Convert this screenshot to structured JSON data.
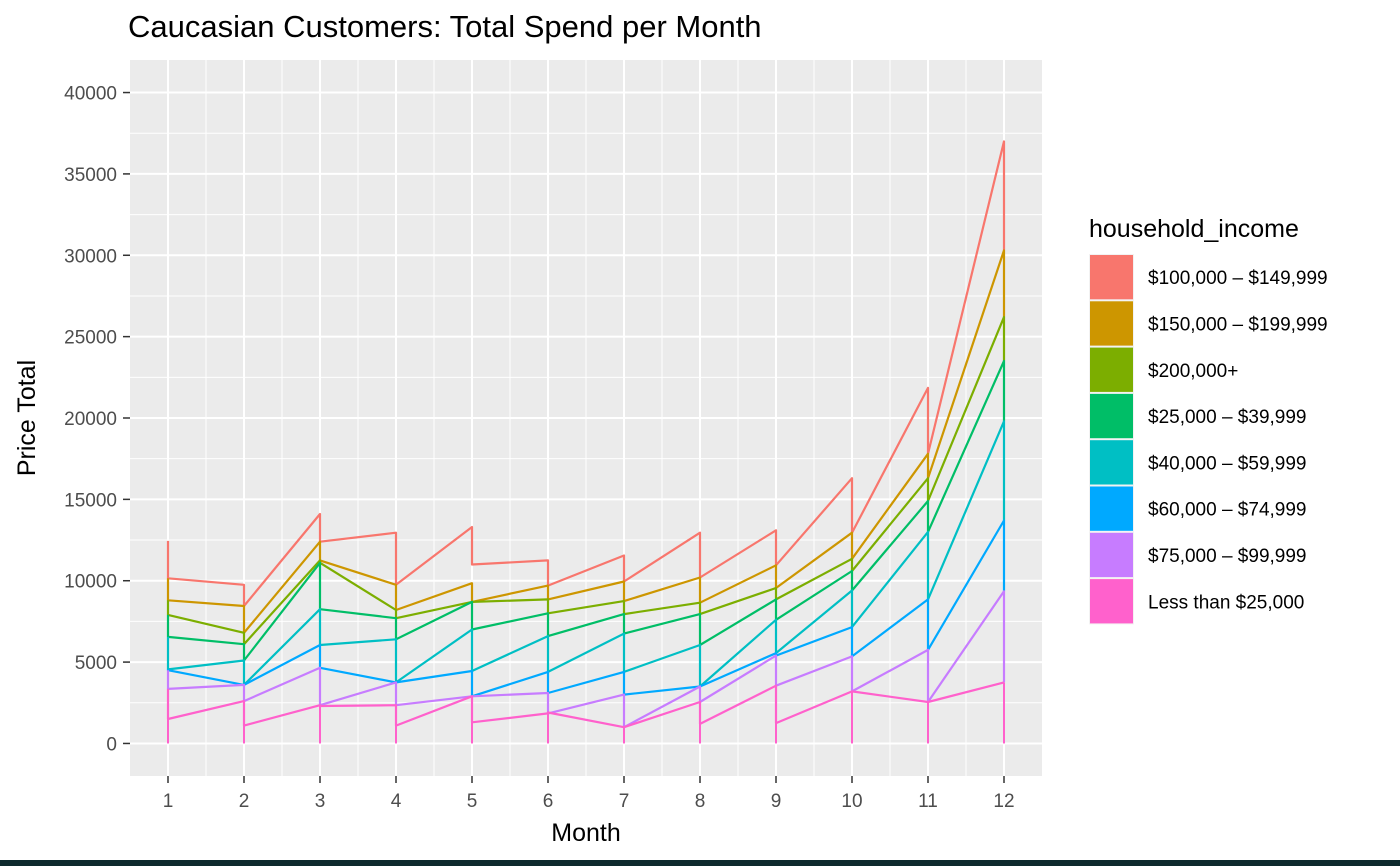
{
  "chart_data": {
    "type": "line",
    "title": "Caucasian Customers: Total Spend per Month",
    "xlabel": "Month",
    "ylabel": "Price Total",
    "x_ticks": [
      "1",
      "2",
      "3",
      "4",
      "5",
      "6",
      "7",
      "8",
      "9",
      "10",
      "11",
      "12"
    ],
    "y_ticks": [
      "0",
      "5000",
      "10000",
      "15000",
      "20000",
      "25000",
      "30000",
      "35000",
      "40000"
    ],
    "xlim": [
      0.5,
      12.5
    ],
    "ylim": [
      -2000,
      42000
    ],
    "grid": true,
    "legend": {
      "title": "household_income",
      "placement": "right"
    },
    "series": [
      {
        "name": "$100,000 – $149,999",
        "color": "#F8766D",
        "values": [
          [
            12450,
            10150
          ],
          [
            9750,
            8450
          ],
          [
            14100,
            12400
          ],
          [
            12950,
            9750
          ],
          [
            13300,
            11000
          ],
          [
            11250,
            9700
          ],
          [
            11550,
            9950
          ],
          [
            12950,
            10200
          ],
          [
            13100,
            10950
          ],
          [
            16300,
            12950
          ],
          [
            21850,
            17800
          ],
          [
            37000,
            30300
          ]
        ]
      },
      {
        "name": "$150,000 – $199,999",
        "color": "#CD9600",
        "values": [
          [
            10150,
            8800
          ],
          [
            8450,
            6800
          ],
          [
            12400,
            11250
          ],
          [
            9750,
            8200
          ],
          [
            9850,
            8700
          ],
          [
            9700,
            8850
          ],
          [
            9950,
            8750
          ],
          [
            10200,
            8650
          ],
          [
            10950,
            9550
          ],
          [
            12950,
            11350
          ],
          [
            17800,
            16300
          ],
          [
            30300,
            26200
          ]
        ]
      },
      {
        "name": "$200,000+",
        "color": "#7CAE00",
        "values": [
          [
            8800,
            7900
          ],
          [
            6800,
            6100
          ],
          [
            11250,
            11100
          ],
          [
            8200,
            7700
          ],
          [
            8700,
            8700
          ],
          [
            8850,
            8000
          ],
          [
            8750,
            7950
          ],
          [
            8650,
            7950
          ],
          [
            9550,
            8850
          ],
          [
            11350,
            10600
          ],
          [
            16300,
            14900
          ],
          [
            26200,
            23500
          ]
        ]
      },
      {
        "name": "$25,000 – $39,999",
        "color": "#00BE67",
        "values": [
          [
            7900,
            6550
          ],
          [
            6100,
            5100
          ],
          [
            11100,
            8250
          ],
          [
            7700,
            6400
          ],
          [
            8700,
            7000
          ],
          [
            8000,
            6600
          ],
          [
            7950,
            6750
          ],
          [
            7950,
            6050
          ],
          [
            8850,
            7600
          ],
          [
            10600,
            9400
          ],
          [
            14900,
            13000
          ],
          [
            23500,
            19800
          ]
        ]
      },
      {
        "name": "$40,000 – $59,999",
        "color": "#00BFC4",
        "values": [
          [
            6550,
            4550
          ],
          [
            5100,
            3600
          ],
          [
            8250,
            6050
          ],
          [
            6400,
            3750
          ],
          [
            7000,
            4450
          ],
          [
            6600,
            4400
          ],
          [
            6750,
            4400
          ],
          [
            6050,
            3500
          ],
          [
            7600,
            5550
          ],
          [
            9400,
            7150
          ],
          [
            13000,
            8850
          ],
          [
            19800,
            13700
          ]
        ]
      },
      {
        "name": "$60,000 – $74,999",
        "color": "#00A9FF",
        "values": [
          [
            4550,
            4500
          ],
          [
            3600,
            3600
          ],
          [
            6050,
            4650
          ],
          [
            3750,
            3750
          ],
          [
            4450,
            2900
          ],
          [
            4400,
            3100
          ],
          [
            4400,
            3000
          ],
          [
            3500,
            3500
          ],
          [
            5550,
            5400
          ],
          [
            7150,
            5350
          ],
          [
            8850,
            5750
          ],
          [
            13700,
            9350
          ]
        ]
      },
      {
        "name": "$75,000 – $99,999",
        "color": "#C77CFF",
        "values": [
          [
            4500,
            3350
          ],
          [
            3600,
            2600
          ],
          [
            4650,
            2350
          ],
          [
            3750,
            2350
          ],
          [
            2900,
            2900
          ],
          [
            3100,
            1850
          ],
          [
            3000,
            1000
          ],
          [
            3500,
            2550
          ],
          [
            5400,
            3550
          ],
          [
            5350,
            3200
          ],
          [
            5750,
            2550
          ],
          [
            9350,
            3750
          ]
        ]
      },
      {
        "name": "Less than $25,000",
        "color": "#FF61CC",
        "values": [
          [
            3350,
            1500
          ],
          [
            2600,
            1100
          ],
          [
            2350,
            2300
          ],
          [
            2350,
            1100
          ],
          [
            2900,
            1300
          ],
          [
            1850,
            1900
          ],
          [
            1000,
            1000
          ],
          [
            2550,
            1200
          ],
          [
            3550,
            1250
          ],
          [
            3200,
            3200
          ],
          [
            2550,
            2550
          ],
          [
            3750,
            3750
          ]
        ]
      }
    ]
  },
  "colors": {
    "panel_background": "#EBEBEB",
    "grid_line": "#FFFFFF",
    "bottom_bar": "#0E2A2E"
  }
}
